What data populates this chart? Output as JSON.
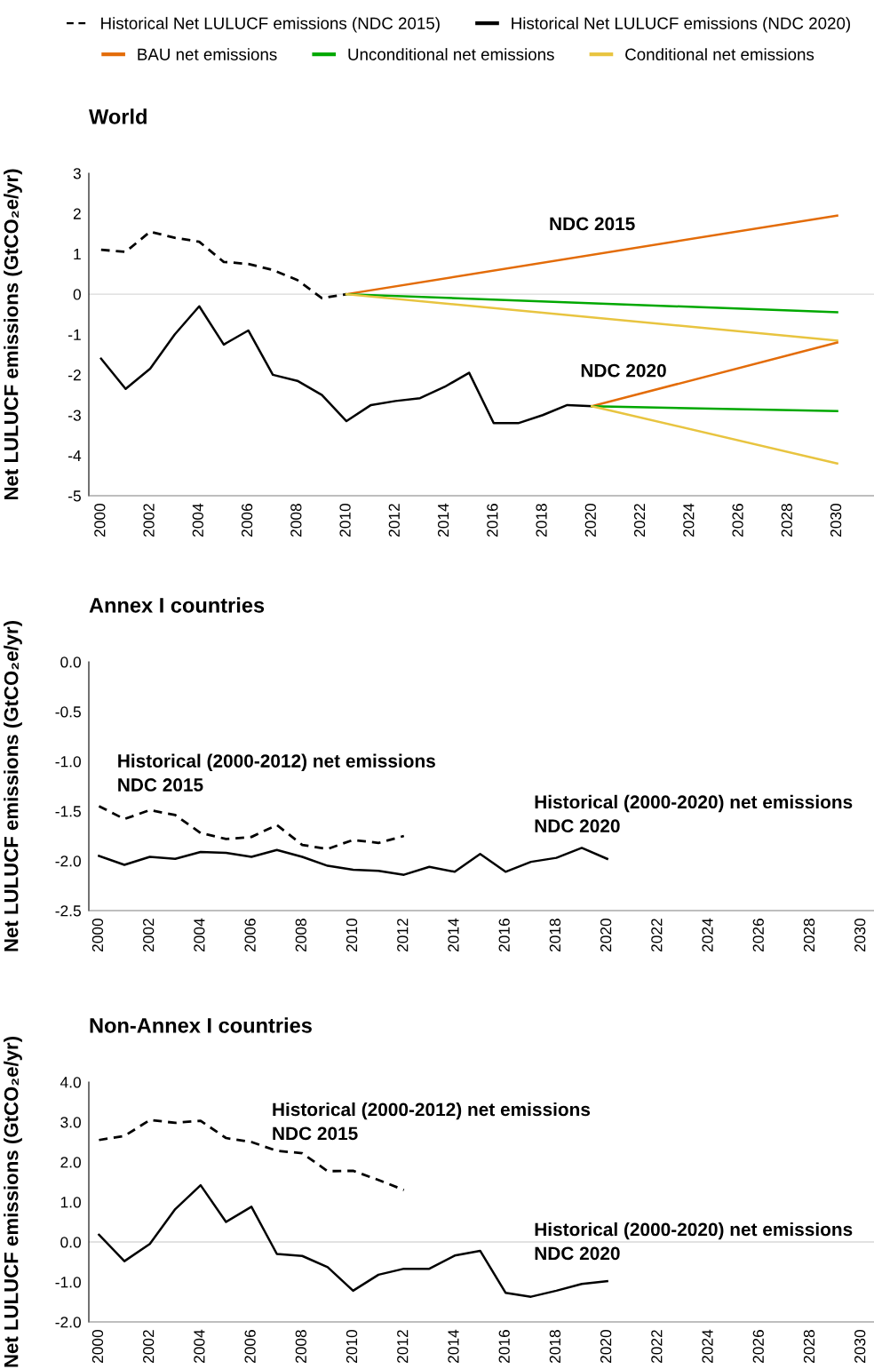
{
  "chart_data": [
    {
      "type": "line",
      "title": "World",
      "ylabel": "Net LULUCF emissions (GtCO₂e/yr)",
      "xlim": [
        1999.5,
        2031.5
      ],
      "xticks": [
        2000,
        2002,
        2004,
        2006,
        2008,
        2010,
        2012,
        2014,
        2016,
        2018,
        2020,
        2022,
        2024,
        2026,
        2028,
        2030
      ],
      "ylim": [
        -5,
        3
      ],
      "yticks": [
        -5,
        -4,
        -3,
        -2,
        -1,
        0,
        1,
        2,
        3
      ],
      "grid": false,
      "legend": "top",
      "ref_lines": [
        {
          "axis": "y",
          "value": 0,
          "color": "#d9d9d9"
        }
      ],
      "annotations": [
        "NDC 2015",
        "NDC 2020"
      ],
      "series": [
        {
          "name": "Historical Net LULUCF emissions (NDC 2015)",
          "color": "#000000",
          "line_style": "dashed",
          "x": [
            2000,
            2001,
            2002,
            2003,
            2004,
            2005,
            2006,
            2007,
            2008,
            2009,
            2010
          ],
          "values": [
            1.1,
            1.05,
            1.55,
            1.4,
            1.3,
            0.8,
            0.75,
            0.6,
            0.35,
            -0.1,
            0.0
          ]
        },
        {
          "name": "Historical Net LULUCF emissions (NDC 2020)",
          "color": "#000000",
          "line_style": "solid",
          "x": [
            2000,
            2001,
            2002,
            2003,
            2004,
            2005,
            2006,
            2007,
            2008,
            2009,
            2010,
            2011,
            2012,
            2013,
            2014,
            2015,
            2016,
            2017,
            2018,
            2019,
            2020
          ],
          "values": [
            -1.6,
            -2.35,
            -1.85,
            -1.0,
            -0.3,
            -1.25,
            -0.9,
            -2.0,
            -2.15,
            -2.5,
            -3.15,
            -2.75,
            -2.65,
            -2.58,
            -2.3,
            -1.95,
            -3.2,
            -3.2,
            -3.0,
            -2.75,
            -2.78
          ]
        },
        {
          "name": "BAU net emissions",
          "color": "#e36c09",
          "line_style": "solid",
          "x": [
            2010,
            2030
          ],
          "values": [
            0.0,
            1.95
          ]
        },
        {
          "name": "Unconditional net emissions",
          "color": "#00a800",
          "line_style": "solid",
          "x": [
            2010,
            2030
          ],
          "values": [
            0.0,
            -0.45
          ]
        },
        {
          "name": "Conditional net emissions",
          "color": "#e8c440",
          "line_style": "solid",
          "x": [
            2010,
            2030
          ],
          "values": [
            0.0,
            -1.15
          ]
        },
        {
          "color": "#e36c09",
          "line_style": "solid",
          "x": [
            2020,
            2030
          ],
          "values": [
            -2.78,
            -1.2
          ]
        },
        {
          "color": "#00a800",
          "line_style": "solid",
          "x": [
            2020,
            2030
          ],
          "values": [
            -2.78,
            -2.9
          ]
        },
        {
          "color": "#e8c440",
          "line_style": "solid",
          "x": [
            2020,
            2030
          ],
          "values": [
            -2.78,
            -4.2
          ]
        }
      ]
    },
    {
      "type": "line",
      "title": "Annex I countries",
      "ylabel": "Net LULUCF emissions (GtCO₂e/yr)",
      "xlim": [
        1999.6,
        2030.5
      ],
      "xticks": [
        2000,
        2002,
        2004,
        2006,
        2008,
        2010,
        2012,
        2014,
        2016,
        2018,
        2020,
        2022,
        2024,
        2026,
        2028,
        2030
      ],
      "ylim": [
        -2.5,
        0.0
      ],
      "yticks": [
        {
          "value": -2.5,
          "label": "-2.5"
        },
        {
          "value": -2.0,
          "label": "-2.0"
        },
        {
          "value": -1.5,
          "label": "-1.5"
        },
        {
          "value": -1.0,
          "label": "-1.0"
        },
        {
          "value": -0.5,
          "label": "-0.5"
        },
        {
          "value": 0.0,
          "label": "0.0"
        }
      ],
      "grid": false,
      "annotations": [
        "Historical (2000-2012) net emissions\nNDC 2015",
        "Historical (2000-2020) net emissions\nNDC 2020"
      ],
      "series": [
        {
          "color": "#000000",
          "line_style": "dashed",
          "x": [
            2000,
            2001,
            2002,
            2003,
            2004,
            2005,
            2006,
            2007,
            2008,
            2009,
            2010,
            2011,
            2012
          ],
          "values": [
            -1.45,
            -1.58,
            -1.49,
            -1.54,
            -1.72,
            -1.78,
            -1.76,
            -1.64,
            -1.84,
            -1.88,
            -1.79,
            -1.82,
            -1.75
          ]
        },
        {
          "color": "#000000",
          "line_style": "solid",
          "x": [
            2000,
            2001,
            2002,
            2003,
            2004,
            2005,
            2006,
            2007,
            2008,
            2009,
            2010,
            2011,
            2012,
            2013,
            2014,
            2015,
            2016,
            2017,
            2018,
            2019,
            2020
          ],
          "values": [
            -1.95,
            -2.04,
            -1.96,
            -1.98,
            -1.91,
            -1.92,
            -1.96,
            -1.89,
            -1.96,
            -2.05,
            -2.09,
            -2.1,
            -2.14,
            -2.06,
            -2.11,
            -1.93,
            -2.11,
            -2.01,
            -1.97,
            -1.87,
            -1.98
          ]
        }
      ]
    },
    {
      "type": "line",
      "title": "Non-Annex I countries",
      "ylabel": "Net LULUCF emissions (GtCO₂e/yr)",
      "xlim": [
        1999.6,
        2030.5
      ],
      "xticks": [
        2000,
        2002,
        2004,
        2006,
        2008,
        2010,
        2012,
        2014,
        2016,
        2018,
        2020,
        2022,
        2024,
        2026,
        2028,
        2030
      ],
      "ylim": [
        -2.0,
        4.0
      ],
      "yticks": [
        {
          "value": -2.0,
          "label": "-2.0"
        },
        {
          "value": -1.0,
          "label": "-1.0"
        },
        {
          "value": 0.0,
          "label": "0.0"
        },
        {
          "value": 1.0,
          "label": "1.0"
        },
        {
          "value": 2.0,
          "label": "2.0"
        },
        {
          "value": 3.0,
          "label": "3.0"
        },
        {
          "value": 4.0,
          "label": "4.0"
        }
      ],
      "grid": false,
      "ref_lines": [
        {
          "axis": "y",
          "value": 0,
          "color": "#d9d9d9"
        }
      ],
      "annotations": [
        "Historical (2000-2012) net emissions\nNDC 2015",
        "Historical (2000-2020) net emissions\nNDC 2020"
      ],
      "series": [
        {
          "color": "#000000",
          "line_style": "dashed",
          "x": [
            2000,
            2001,
            2002,
            2003,
            2004,
            2005,
            2006,
            2007,
            2008,
            2009,
            2010,
            2011,
            2012
          ],
          "values": [
            2.55,
            2.65,
            3.05,
            2.98,
            3.03,
            2.6,
            2.5,
            2.28,
            2.22,
            1.77,
            1.78,
            1.55,
            1.3
          ]
        },
        {
          "color": "#000000",
          "line_style": "solid",
          "x": [
            2000,
            2001,
            2002,
            2003,
            2004,
            2005,
            2006,
            2007,
            2008,
            2009,
            2010,
            2011,
            2012,
            2013,
            2014,
            2015,
            2016,
            2017,
            2018,
            2019,
            2020
          ],
          "values": [
            0.18,
            -0.48,
            -0.05,
            0.82,
            1.42,
            0.5,
            0.88,
            -0.3,
            -0.35,
            -0.63,
            -1.22,
            -0.82,
            -0.67,
            -0.67,
            -0.34,
            -0.22,
            -1.27,
            -1.37,
            -1.22,
            -1.05,
            -0.98
          ]
        }
      ]
    }
  ]
}
